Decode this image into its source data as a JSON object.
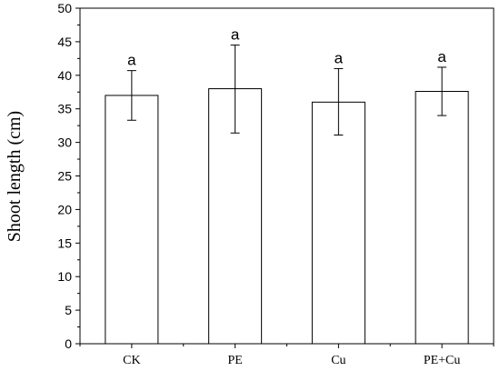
{
  "chart_data": {
    "type": "bar",
    "title": "",
    "xlabel": "",
    "ylabel": "Shoot length (cm)",
    "ylim": [
      0,
      50
    ],
    "yticks": [
      0,
      5,
      10,
      15,
      20,
      25,
      30,
      35,
      40,
      45,
      50
    ],
    "grid": false,
    "categories": [
      "CK",
      "PE",
      "Cu",
      "PE+Cu"
    ],
    "values": [
      37.0,
      38.0,
      36.0,
      37.6
    ],
    "error_low": [
      33.3,
      31.4,
      31.1,
      34.0
    ],
    "error_high": [
      40.7,
      44.5,
      41.0,
      41.2
    ],
    "significance": [
      "a",
      "a",
      "a",
      "a"
    ],
    "bar_fill": "#ffffff",
    "bar_stroke": "#000000"
  }
}
